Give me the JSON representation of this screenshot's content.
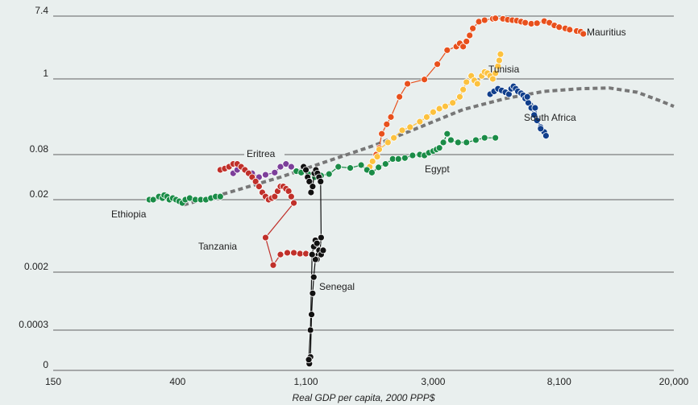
{
  "chart_data": {
    "type": "scatter",
    "xlabel": "Real GDP per capita, 2000 PPP$",
    "ylabel": "",
    "x_scale": "log",
    "xlim": [
      150,
      20000
    ],
    "x_ticks": [
      150,
      400,
      1100,
      3000,
      8100,
      20000
    ],
    "x_tick_labels": [
      "150",
      "400",
      "1,100",
      "3,000",
      "8,100",
      "20,000"
    ],
    "y_ticks": [
      0,
      0.0003,
      0.002,
      0.02,
      0.08,
      1,
      7.4
    ],
    "y_tick_labels": [
      "0",
      "0.0003",
      "0.002",
      "0.02",
      "0.08",
      "1",
      "7.4"
    ],
    "grid": "horizontal",
    "series": [
      {
        "name": "Mauritius",
        "color": "#e8501c",
        "points": [
          [
            1915,
            0.08
          ],
          [
            1960,
            0.1
          ],
          [
            2000,
            0.16
          ],
          [
            2080,
            0.22
          ],
          [
            2150,
            0.28
          ],
          [
            2300,
            0.55
          ],
          [
            2450,
            0.85
          ],
          [
            2800,
            0.98
          ],
          [
            3100,
            1.6
          ],
          [
            3350,
            2.5
          ],
          [
            3600,
            2.8
          ],
          [
            3700,
            3.1
          ],
          [
            3800,
            2.8
          ],
          [
            3900,
            3.3
          ],
          [
            4000,
            4.0
          ],
          [
            4100,
            5.0
          ],
          [
            4300,
            6.2
          ],
          [
            4500,
            6.5
          ],
          [
            4800,
            6.8
          ],
          [
            4900,
            6.9
          ],
          [
            5200,
            6.8
          ],
          [
            5400,
            6.6
          ],
          [
            5600,
            6.5
          ],
          [
            5800,
            6.4
          ],
          [
            6000,
            6.2
          ],
          [
            6200,
            6.0
          ],
          [
            6500,
            5.8
          ],
          [
            6800,
            5.9
          ],
          [
            7200,
            6.3
          ],
          [
            7500,
            6.0
          ],
          [
            7800,
            5.5
          ],
          [
            8100,
            5.2
          ],
          [
            8500,
            5.0
          ],
          [
            8800,
            4.8
          ],
          [
            9300,
            4.6
          ],
          [
            9600,
            4.5
          ],
          [
            9800,
            4.2
          ]
        ]
      },
      {
        "name": "Tunisia",
        "color": "#fcc13e",
        "points": [
          [
            1820,
            0.055
          ],
          [
            1860,
            0.065
          ],
          [
            1930,
            0.075
          ],
          [
            1960,
            0.095
          ],
          [
            2100,
            0.12
          ],
          [
            2200,
            0.14
          ],
          [
            2350,
            0.18
          ],
          [
            2500,
            0.2
          ],
          [
            2700,
            0.24
          ],
          [
            2850,
            0.28
          ],
          [
            3000,
            0.33
          ],
          [
            3150,
            0.37
          ],
          [
            3300,
            0.4
          ],
          [
            3500,
            0.45
          ],
          [
            3700,
            0.55
          ],
          [
            3800,
            0.7
          ],
          [
            3900,
            0.9
          ],
          [
            4050,
            1.1
          ],
          [
            4150,
            0.95
          ],
          [
            4250,
            0.85
          ],
          [
            4400,
            1.1
          ],
          [
            4500,
            1.25
          ],
          [
            4600,
            1.2
          ],
          [
            4700,
            1.1
          ],
          [
            4800,
            1.0
          ],
          [
            4900,
            1.2
          ],
          [
            5000,
            1.5
          ],
          [
            5050,
            1.8
          ],
          [
            5100,
            2.2
          ]
        ]
      },
      {
        "name": "South Africa",
        "color": "#113f8c",
        "points": [
          [
            4700,
            0.6
          ],
          [
            4850,
            0.66
          ],
          [
            5000,
            0.72
          ],
          [
            5150,
            0.68
          ],
          [
            5300,
            0.64
          ],
          [
            5450,
            0.6
          ],
          [
            5550,
            0.72
          ],
          [
            5650,
            0.78
          ],
          [
            5750,
            0.72
          ],
          [
            5850,
            0.66
          ],
          [
            6000,
            0.62
          ],
          [
            6100,
            0.58
          ],
          [
            6200,
            0.52
          ],
          [
            6350,
            0.45
          ],
          [
            6500,
            0.38
          ],
          [
            6650,
            0.3
          ],
          [
            6800,
            0.25
          ],
          [
            7000,
            0.2
          ],
          [
            7200,
            0.17
          ],
          [
            7300,
            0.15
          ],
          [
            7000,
            0.19
          ],
          [
            6700,
            0.38
          ],
          [
            6300,
            0.55
          ]
        ]
      },
      {
        "name": "Egypt",
        "color": "#1a8c47",
        "points": [
          [
            1020,
            0.048
          ],
          [
            1060,
            0.046
          ],
          [
            1120,
            0.044
          ],
          [
            1180,
            0.04
          ],
          [
            1240,
            0.042
          ],
          [
            1320,
            0.044
          ],
          [
            1420,
            0.055
          ],
          [
            1560,
            0.053
          ],
          [
            1700,
            0.058
          ],
          [
            1780,
            0.05
          ],
          [
            1850,
            0.046
          ],
          [
            1950,
            0.054
          ],
          [
            2060,
            0.06
          ],
          [
            2180,
            0.07
          ],
          [
            2280,
            0.07
          ],
          [
            2400,
            0.072
          ],
          [
            2550,
            0.078
          ],
          [
            2700,
            0.08
          ],
          [
            2800,
            0.078
          ],
          [
            2900,
            0.085
          ],
          [
            3000,
            0.09
          ],
          [
            3080,
            0.095
          ],
          [
            3150,
            0.1
          ],
          [
            3250,
            0.12
          ],
          [
            3350,
            0.16
          ],
          [
            3450,
            0.13
          ],
          [
            3650,
            0.12
          ],
          [
            3900,
            0.12
          ],
          [
            4200,
            0.13
          ],
          [
            4500,
            0.14
          ],
          [
            4900,
            0.14
          ]
        ]
      },
      {
        "name": "Ethiopia",
        "color": "#1a8c47",
        "points": [
          [
            320,
            0.02
          ],
          [
            330,
            0.02
          ],
          [
            345,
            0.022
          ],
          [
            355,
            0.021
          ],
          [
            360,
            0.023
          ],
          [
            368,
            0.022
          ],
          [
            375,
            0.02
          ],
          [
            385,
            0.021
          ],
          [
            395,
            0.02
          ],
          [
            405,
            0.019
          ],
          [
            415,
            0.018
          ],
          [
            425,
            0.02
          ],
          [
            440,
            0.021
          ],
          [
            460,
            0.02
          ],
          [
            480,
            0.02
          ],
          [
            500,
            0.02
          ],
          [
            520,
            0.021
          ],
          [
            540,
            0.022
          ],
          [
            560,
            0.022
          ]
        ]
      },
      {
        "name": "Eritrea",
        "color": "#7c3f9a",
        "points": [
          [
            620,
            0.045
          ],
          [
            640,
            0.05
          ],
          [
            660,
            0.055
          ],
          [
            680,
            0.05
          ],
          [
            700,
            0.046
          ],
          [
            720,
            0.045
          ],
          [
            760,
            0.04
          ],
          [
            800,
            0.043
          ],
          [
            860,
            0.046
          ],
          [
            900,
            0.055
          ],
          [
            940,
            0.06
          ],
          [
            980,
            0.055
          ]
        ]
      },
      {
        "name": "Tanzania",
        "color": "#c0302a",
        "points": [
          [
            560,
            0.05
          ],
          [
            580,
            0.052
          ],
          [
            600,
            0.055
          ],
          [
            620,
            0.06
          ],
          [
            640,
            0.06
          ],
          [
            660,
            0.055
          ],
          [
            680,
            0.05
          ],
          [
            700,
            0.045
          ],
          [
            720,
            0.04
          ],
          [
            740,
            0.035
          ],
          [
            760,
            0.03
          ],
          [
            780,
            0.025
          ],
          [
            800,
            0.022
          ],
          [
            820,
            0.02
          ],
          [
            840,
            0.021
          ],
          [
            860,
            0.022
          ],
          [
            880,
            0.026
          ],
          [
            900,
            0.03
          ],
          [
            920,
            0.03
          ],
          [
            940,
            0.028
          ],
          [
            960,
            0.026
          ],
          [
            980,
            0.022
          ],
          [
            1000,
            0.018
          ],
          [
            800,
            0.006
          ],
          [
            850,
            0.0025
          ],
          [
            900,
            0.0035
          ],
          [
            950,
            0.0037
          ],
          [
            1000,
            0.0037
          ],
          [
            1050,
            0.0036
          ],
          [
            1100,
            0.0036
          ],
          [
            1150,
            0.0035
          ]
        ]
      },
      {
        "name": "Senegal",
        "color": "#111111",
        "points": [
          [
            1080,
            0.055
          ],
          [
            1100,
            0.05
          ],
          [
            1115,
            0.04
          ],
          [
            1130,
            0.035
          ],
          [
            1145,
            0.025
          ],
          [
            1160,
            0.03
          ],
          [
            1175,
            0.045
          ],
          [
            1190,
            0.05
          ],
          [
            1205,
            0.045
          ],
          [
            1220,
            0.04
          ],
          [
            1235,
            0.035
          ],
          [
            1240,
            0.006
          ],
          [
            1230,
            0.004
          ],
          [
            1215,
            0.0035
          ],
          [
            1200,
            0.003
          ],
          [
            1185,
            0.003
          ],
          [
            1170,
            0.0017
          ],
          [
            1160,
            0.001
          ],
          [
            1150,
            0.0005
          ],
          [
            1140,
            0.0001
          ],
          [
            1130,
            5e-05
          ],
          [
            1125,
            8e-05
          ],
          [
            1140,
            0.0003
          ],
          [
            1155,
            0.0035
          ],
          [
            1170,
            0.0045
          ],
          [
            1185,
            0.0055
          ],
          [
            1200,
            0.005
          ],
          [
            1220,
            0.004
          ],
          [
            1240,
            0.0035
          ],
          [
            1260,
            0.004
          ]
        ]
      }
    ],
    "trend_line": [
      [
        420,
        0.017
      ],
      [
        600,
        0.025
      ],
      [
        900,
        0.04
      ],
      [
        1300,
        0.065
      ],
      [
        1900,
        0.11
      ],
      [
        2700,
        0.2
      ],
      [
        3800,
        0.36
      ],
      [
        5300,
        0.52
      ],
      [
        7200,
        0.66
      ],
      [
        9500,
        0.72
      ],
      [
        12000,
        0.74
      ],
      [
        15000,
        0.64
      ],
      [
        18000,
        0.48
      ],
      [
        20000,
        0.4
      ]
    ]
  }
}
